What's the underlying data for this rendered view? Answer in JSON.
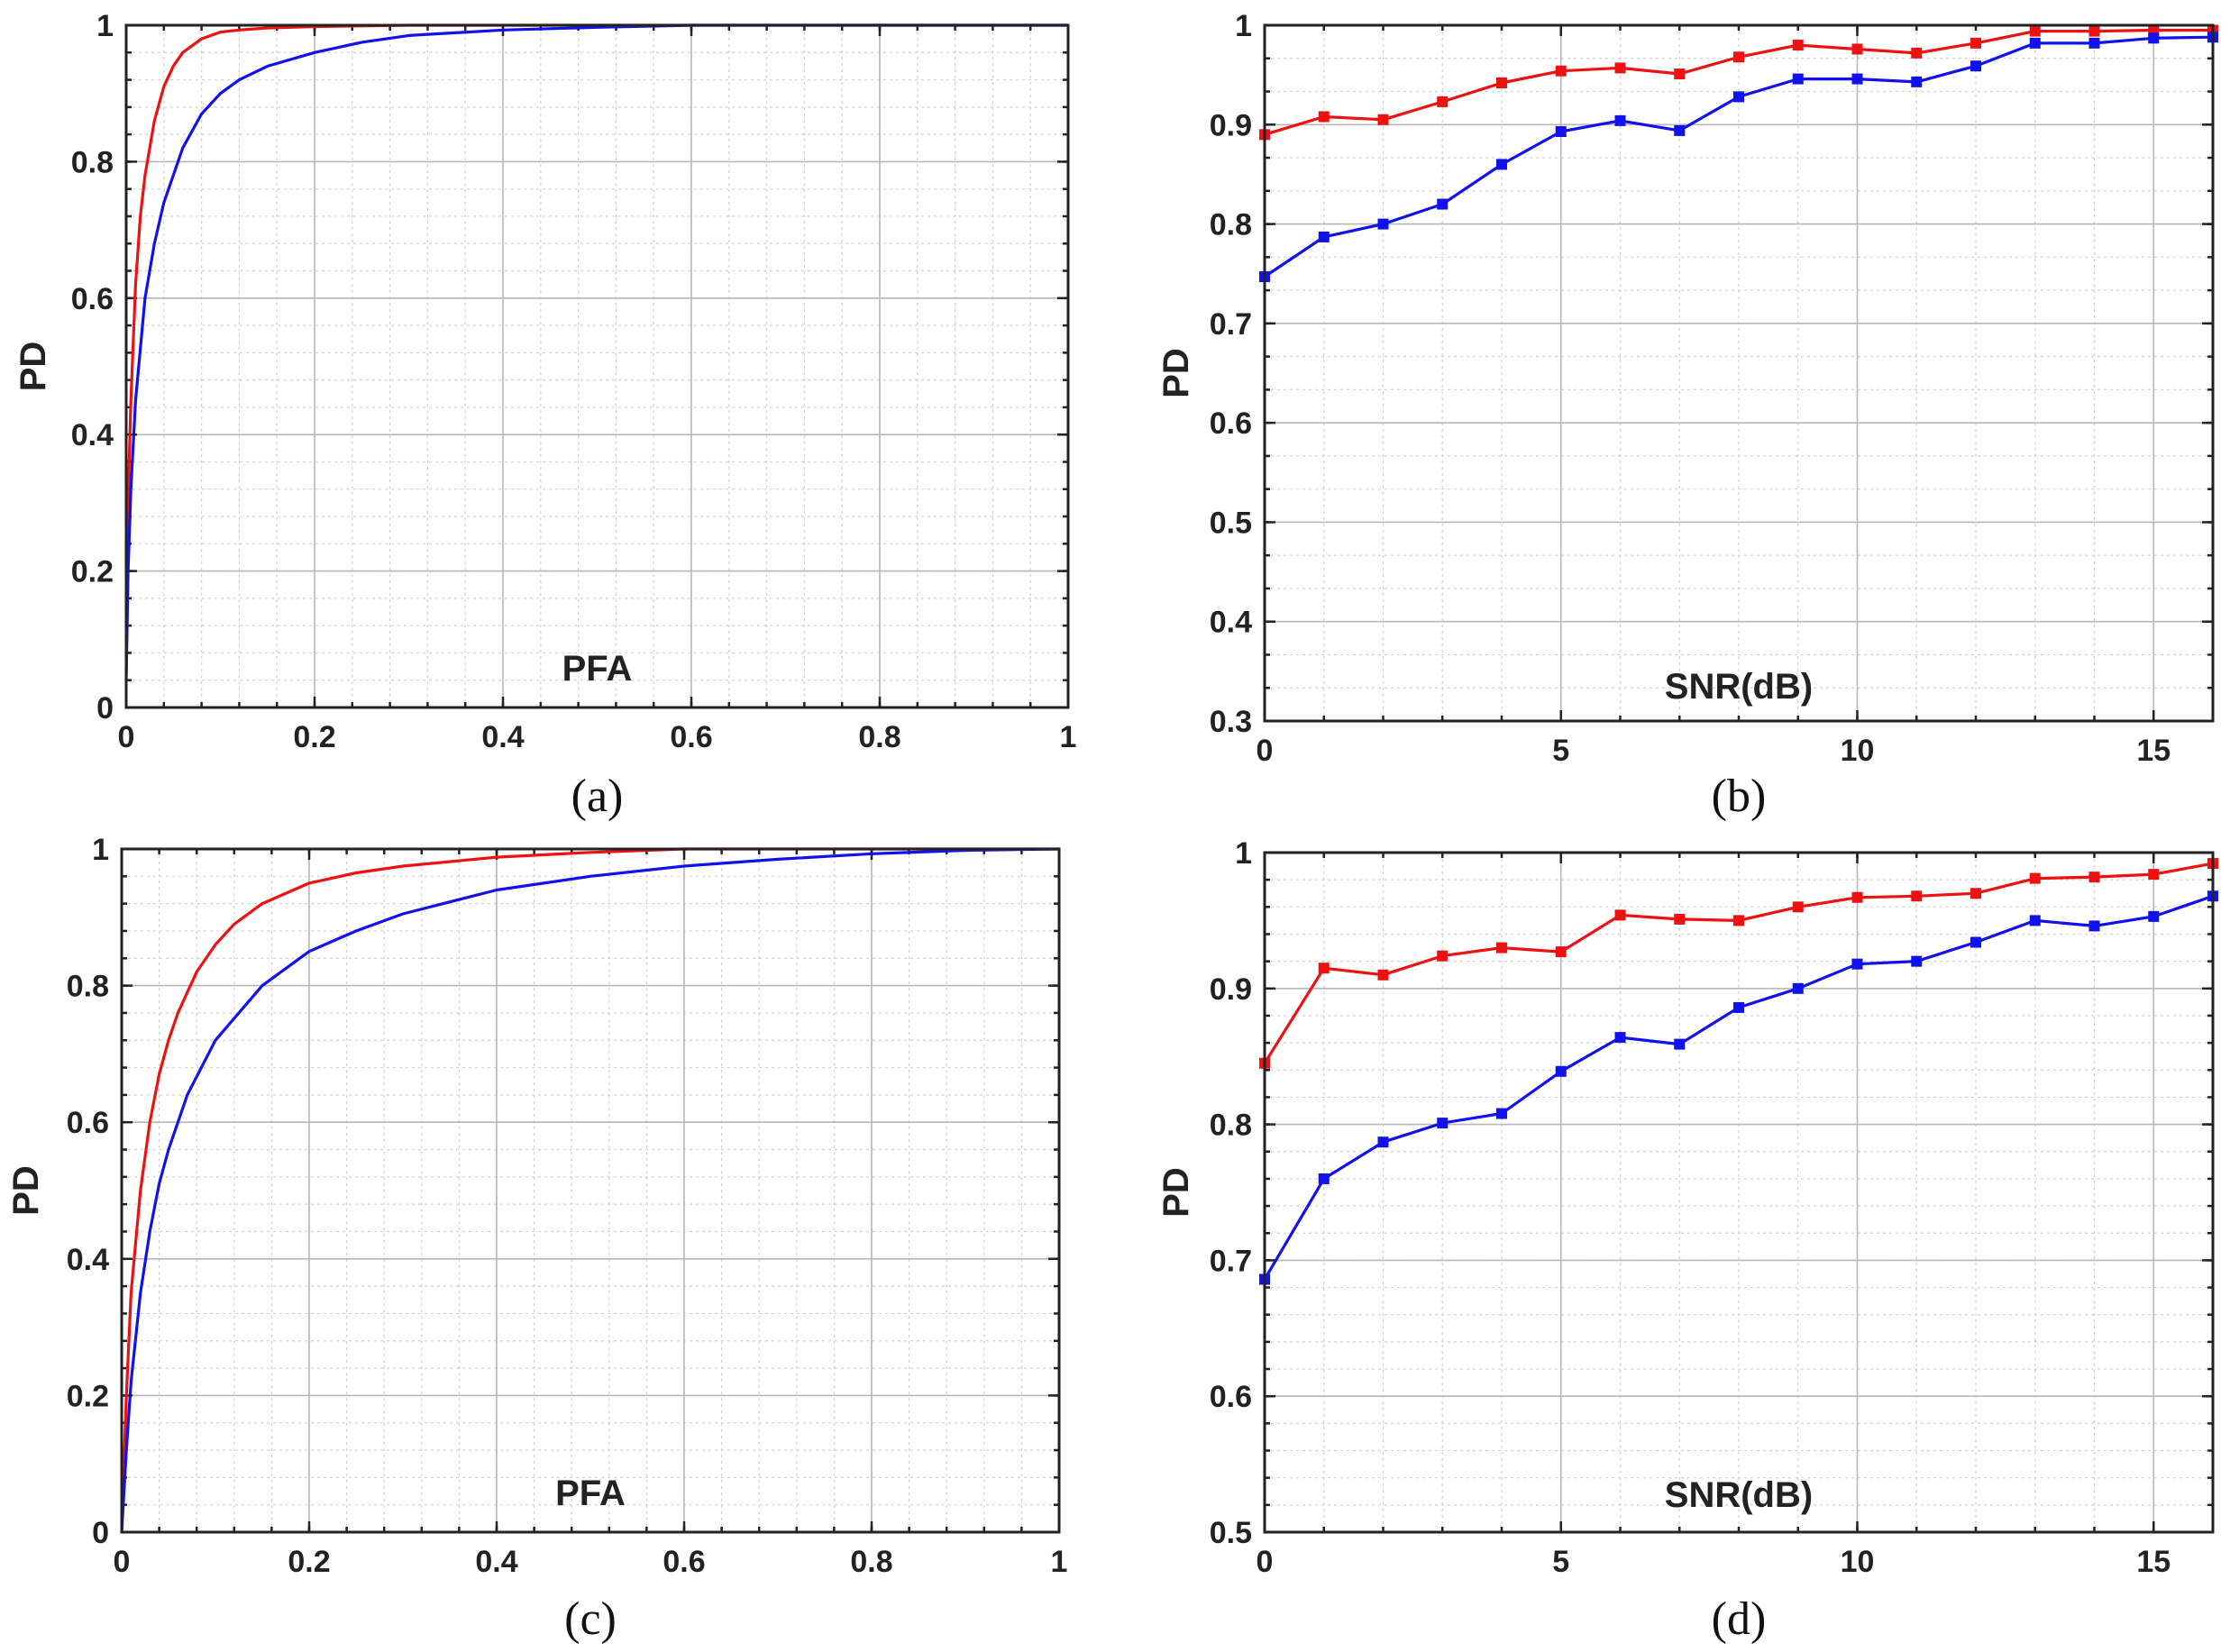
{
  "colors": {
    "red": "#ee1111",
    "blue": "#1111ee",
    "axis": "#222222",
    "grid": "#b8b8b8"
  },
  "chart_data": [
    {
      "id": "a",
      "type": "line",
      "caption": "(a)",
      "xlabel": "PFA",
      "ylabel": "PD",
      "xlim": [
        0,
        1
      ],
      "ylim": [
        0,
        1
      ],
      "xticks": [
        0,
        0.2,
        0.4,
        0.6,
        0.8,
        1
      ],
      "yticks": [
        0,
        0.2,
        0.4,
        0.6,
        0.8,
        1
      ],
      "xtick_labels": [
        "0",
        "0.2",
        "0.4",
        "0.6",
        "0.8",
        "1"
      ],
      "ytick_labels": [
        "0",
        "0.2",
        "0.4",
        "0.6",
        "0.8",
        "1"
      ],
      "series": [
        {
          "name": "red",
          "color": "#ee1111",
          "x": [
            0,
            0.002,
            0.005,
            0.01,
            0.015,
            0.02,
            0.03,
            0.04,
            0.05,
            0.06,
            0.07,
            0.08,
            0.1,
            0.12,
            0.15,
            0.2,
            0.3,
            1.0
          ],
          "y": [
            0.05,
            0.3,
            0.45,
            0.62,
            0.72,
            0.78,
            0.86,
            0.91,
            0.94,
            0.96,
            0.97,
            0.98,
            0.99,
            0.993,
            0.996,
            0.998,
            1.0,
            1.0
          ]
        },
        {
          "name": "blue",
          "color": "#1111ee",
          "x": [
            0,
            0.002,
            0.005,
            0.01,
            0.02,
            0.03,
            0.04,
            0.05,
            0.06,
            0.08,
            0.1,
            0.12,
            0.15,
            0.2,
            0.25,
            0.3,
            0.4,
            0.5,
            0.6,
            1.0
          ],
          "y": [
            0.04,
            0.2,
            0.32,
            0.45,
            0.6,
            0.68,
            0.74,
            0.78,
            0.82,
            0.87,
            0.9,
            0.92,
            0.94,
            0.96,
            0.975,
            0.985,
            0.993,
            0.997,
            1.0,
            1.0
          ]
        }
      ]
    },
    {
      "id": "b",
      "type": "line",
      "caption": "(b)",
      "xlabel": "SNR(dB)",
      "ylabel": "PD",
      "xlim": [
        0,
        16
      ],
      "ylim": [
        0.3,
        1
      ],
      "xticks": [
        0,
        5,
        10,
        15
      ],
      "yticks": [
        0.3,
        0.4,
        0.5,
        0.6,
        0.7,
        0.8,
        0.9,
        1
      ],
      "xtick_labels": [
        "0",
        "5",
        "10",
        "15"
      ],
      "ytick_labels": [
        "0.3",
        "0.4",
        "0.5",
        "0.6",
        "0.7",
        "0.8",
        "0.9",
        "1"
      ],
      "series": [
        {
          "name": "red",
          "color": "#ee1111",
          "x": [
            0,
            1,
            2,
            3,
            4,
            5,
            6,
            7,
            8,
            9,
            10,
            11,
            12,
            13,
            14,
            15,
            16
          ],
          "y": [
            0.89,
            0.908,
            0.905,
            0.923,
            0.942,
            0.954,
            0.957,
            0.951,
            0.968,
            0.98,
            0.976,
            0.972,
            0.982,
            0.994,
            0.994,
            0.995,
            0.995
          ]
        },
        {
          "name": "blue",
          "color": "#1111ee",
          "x": [
            0,
            1,
            2,
            3,
            4,
            5,
            6,
            7,
            8,
            9,
            10,
            11,
            12,
            13,
            14,
            15,
            16
          ],
          "y": [
            0.747,
            0.787,
            0.8,
            0.82,
            0.86,
            0.893,
            0.904,
            0.894,
            0.928,
            0.946,
            0.946,
            0.943,
            0.959,
            0.982,
            0.982,
            0.987,
            0.988
          ]
        }
      ]
    },
    {
      "id": "c",
      "type": "line",
      "caption": "(c)",
      "xlabel": "PFA",
      "ylabel": "PD",
      "xlim": [
        0,
        1
      ],
      "ylim": [
        0,
        1
      ],
      "xticks": [
        0,
        0.2,
        0.4,
        0.6,
        0.8,
        1
      ],
      "yticks": [
        0,
        0.2,
        0.4,
        0.6,
        0.8,
        1
      ],
      "xtick_labels": [
        "0",
        "0.2",
        "0.4",
        "0.6",
        "0.8",
        "1"
      ],
      "ytick_labels": [
        "0",
        "0.2",
        "0.4",
        "0.6",
        "0.8",
        "1"
      ],
      "series": [
        {
          "name": "red",
          "color": "#ee1111",
          "x": [
            0,
            0.005,
            0.01,
            0.02,
            0.03,
            0.04,
            0.05,
            0.06,
            0.08,
            0.1,
            0.12,
            0.15,
            0.2,
            0.25,
            0.3,
            0.4,
            0.5,
            0.6,
            1.0
          ],
          "y": [
            0.0,
            0.2,
            0.35,
            0.5,
            0.6,
            0.67,
            0.72,
            0.76,
            0.82,
            0.86,
            0.89,
            0.92,
            0.95,
            0.965,
            0.975,
            0.988,
            0.995,
            1.0,
            1.0
          ]
        },
        {
          "name": "blue",
          "color": "#1111ee",
          "x": [
            0,
            0.005,
            0.01,
            0.02,
            0.03,
            0.04,
            0.05,
            0.07,
            0.1,
            0.15,
            0.2,
            0.25,
            0.3,
            0.4,
            0.5,
            0.6,
            0.7,
            0.8,
            0.9,
            1.0
          ],
          "y": [
            0.0,
            0.12,
            0.22,
            0.35,
            0.44,
            0.51,
            0.56,
            0.64,
            0.72,
            0.8,
            0.85,
            0.88,
            0.905,
            0.94,
            0.96,
            0.975,
            0.985,
            0.993,
            0.998,
            1.0
          ]
        }
      ]
    },
    {
      "id": "d",
      "type": "line",
      "caption": "(d)",
      "xlabel": "SNR(dB)",
      "ylabel": "PD",
      "xlim": [
        0,
        16
      ],
      "ylim": [
        0.5,
        1
      ],
      "xticks": [
        0,
        5,
        10,
        15
      ],
      "yticks": [
        0.5,
        0.6,
        0.7,
        0.8,
        0.9,
        1
      ],
      "xtick_labels": [
        "0",
        "5",
        "10",
        "15"
      ],
      "ytick_labels": [
        "0.5",
        "0.6",
        "0.7",
        "0.8",
        "0.9",
        "1"
      ],
      "series": [
        {
          "name": "red",
          "color": "#ee1111",
          "x": [
            0,
            1,
            2,
            3,
            4,
            5,
            6,
            7,
            8,
            9,
            10,
            11,
            12,
            13,
            14,
            15,
            16
          ],
          "y": [
            0.845,
            0.915,
            0.91,
            0.924,
            0.93,
            0.927,
            0.954,
            0.951,
            0.95,
            0.96,
            0.967,
            0.968,
            0.97,
            0.981,
            0.982,
            0.984,
            0.992
          ]
        },
        {
          "name": "blue",
          "color": "#1111ee",
          "x": [
            0,
            1,
            2,
            3,
            4,
            5,
            6,
            7,
            8,
            9,
            10,
            11,
            12,
            13,
            14,
            15,
            16
          ],
          "y": [
            0.686,
            0.76,
            0.787,
            0.801,
            0.808,
            0.839,
            0.864,
            0.859,
            0.886,
            0.9,
            0.918,
            0.92,
            0.934,
            0.95,
            0.946,
            0.953,
            0.968
          ]
        }
      ]
    }
  ]
}
